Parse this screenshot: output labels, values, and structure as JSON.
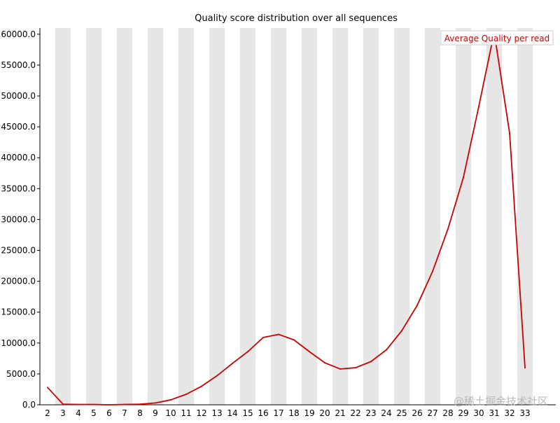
{
  "chart_data": {
    "type": "line",
    "title": "Quality score distribution over all sequences",
    "xlabel": "",
    "ylabel": "",
    "x": [
      2,
      3,
      4,
      5,
      6,
      7,
      8,
      9,
      10,
      11,
      12,
      13,
      14,
      15,
      16,
      17,
      18,
      19,
      20,
      21,
      22,
      23,
      24,
      25,
      26,
      27,
      28,
      29,
      30,
      31,
      32,
      33
    ],
    "series": [
      {
        "name": "Average Quality per read",
        "color": "#cc0000",
        "values": [
          2800,
          100,
          50,
          50,
          0,
          50,
          100,
          300,
          800,
          1700,
          3000,
          4700,
          6700,
          8600,
          10900,
          11400,
          10500,
          8600,
          6800,
          5800,
          6000,
          7000,
          8900,
          12000,
          16100,
          21600,
          28500,
          36800,
          48300,
          60300,
          44000,
          6000
        ]
      }
    ],
    "ylim": [
      0,
      61000
    ],
    "yticks": [
      "0.0",
      "5000.0",
      "10000.0",
      "15000.0",
      "20000.0",
      "25000.0",
      "30000.0",
      "35000.0",
      "40000.0",
      "45000.0",
      "50000.0",
      "55000.0",
      "60000.0"
    ],
    "xticks": [
      "2",
      "3",
      "4",
      "5",
      "6",
      "7",
      "8",
      "9",
      "10",
      "11",
      "12",
      "13",
      "14",
      "15",
      "16",
      "17",
      "18",
      "19",
      "20",
      "21",
      "22",
      "23",
      "24",
      "25",
      "26",
      "27",
      "28",
      "29",
      "30",
      "31",
      "32",
      "33"
    ],
    "grid": "alternating vertical gray bands",
    "legend_position": "top-right"
  },
  "watermark": "@稀土掘金技术社区",
  "colors": {
    "band": "#e6e6e6",
    "line": "#cc0000",
    "axis": "#000000",
    "legend_border": "#cccccc"
  }
}
